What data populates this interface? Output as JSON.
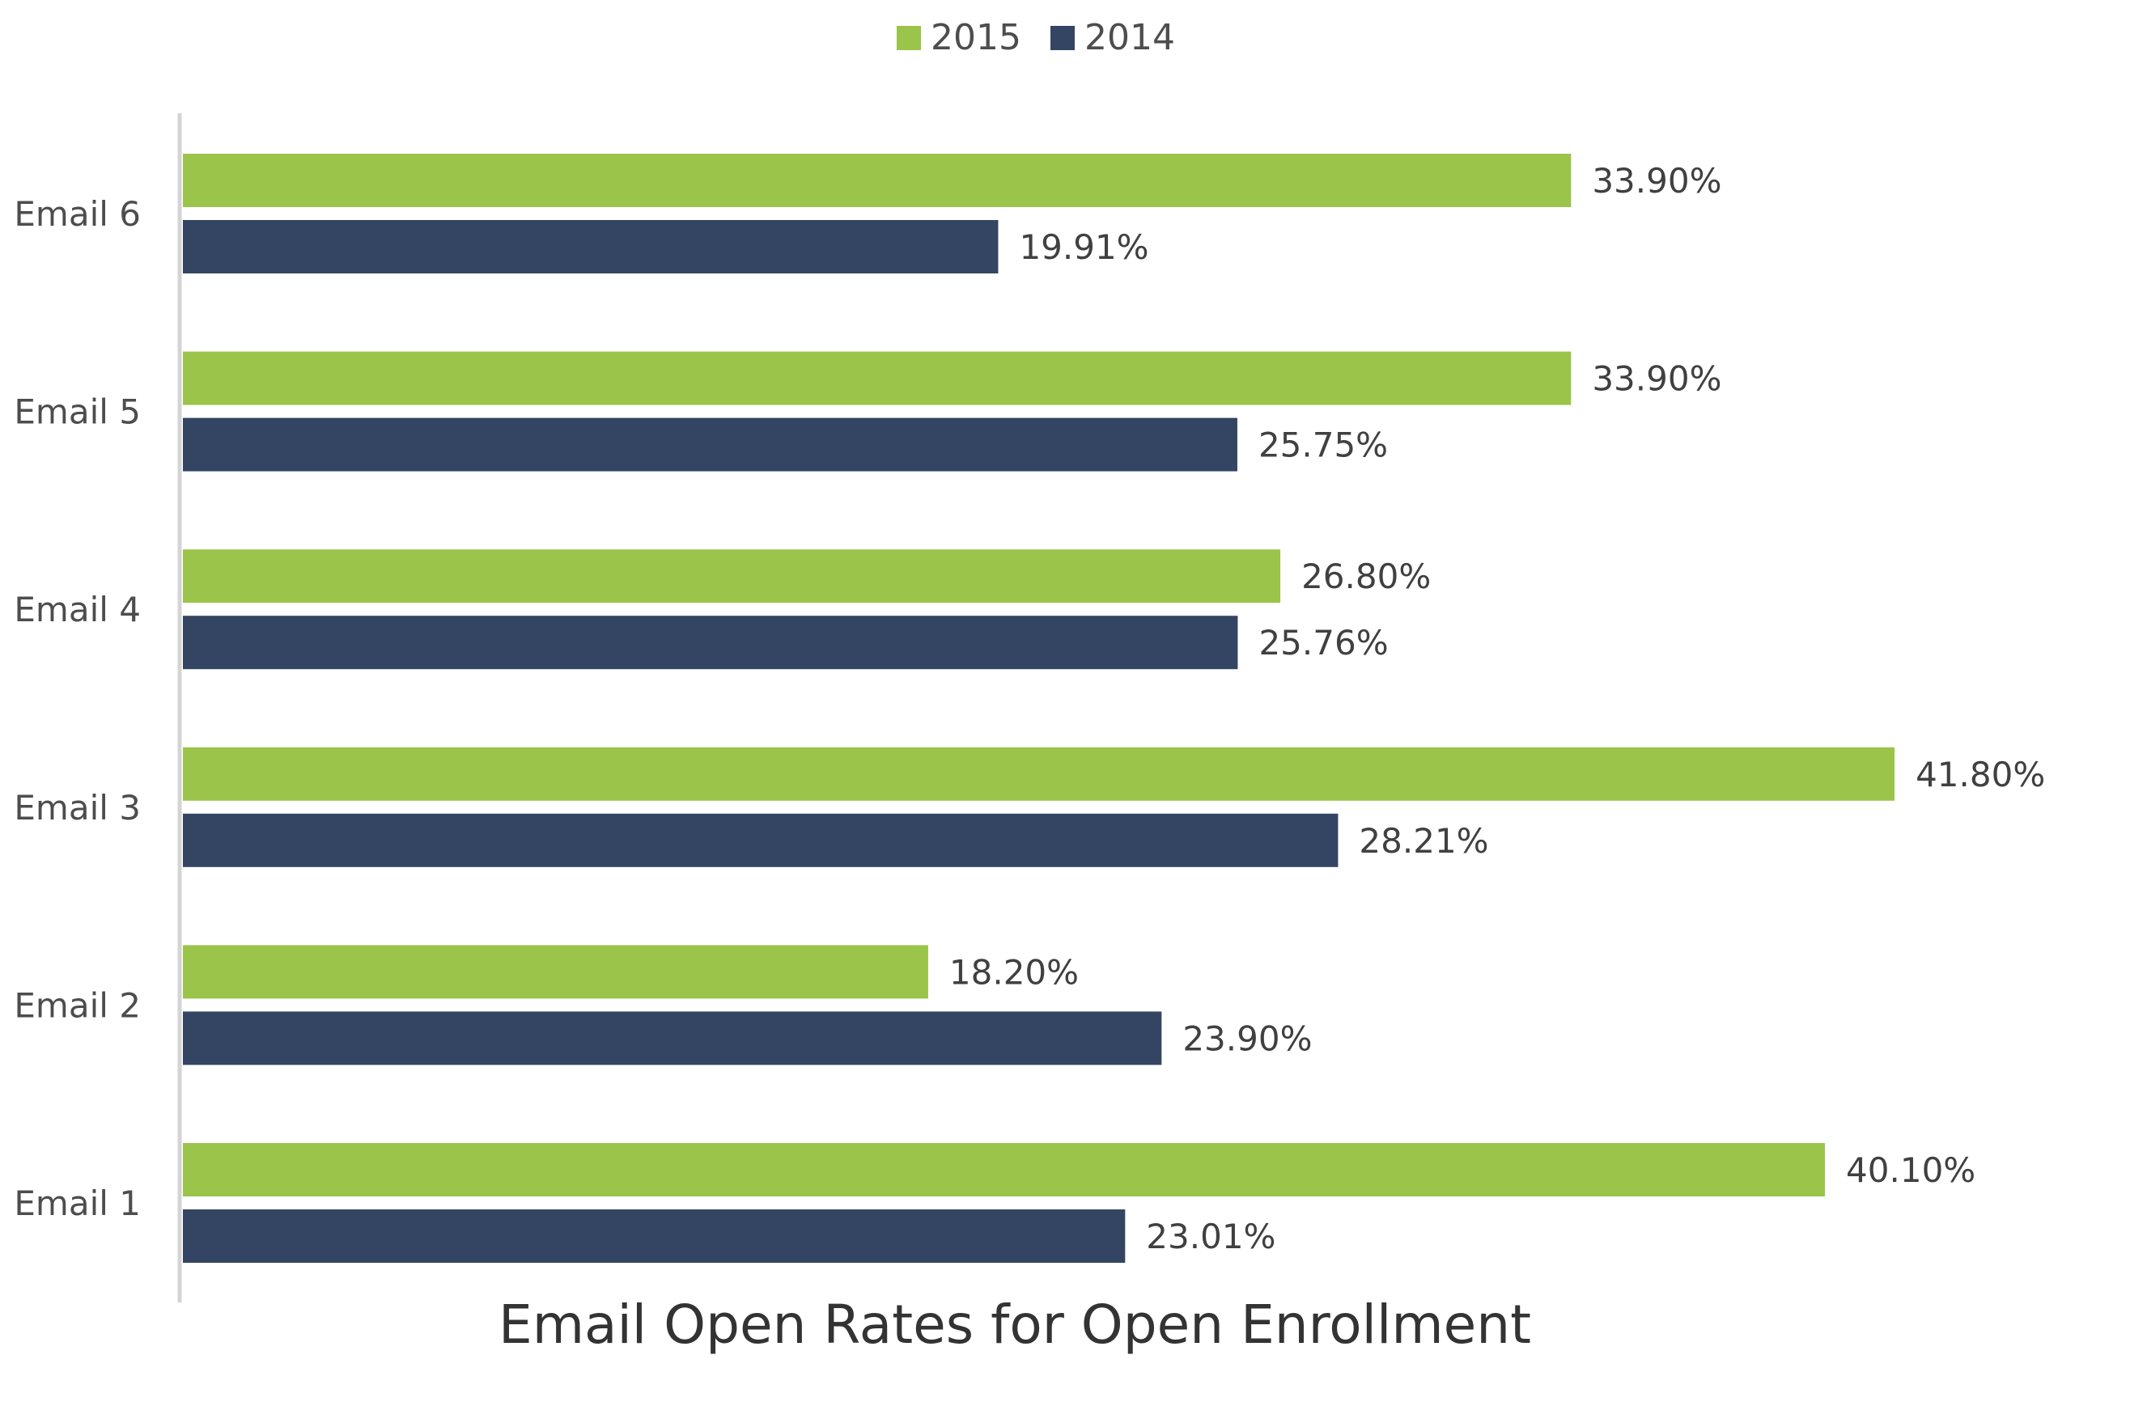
{
  "chart_data": {
    "type": "bar",
    "orientation": "horizontal",
    "title": "Email Open Rates for Open Enrollment",
    "categories": [
      "Email 6",
      "Email 5",
      "Email 4",
      "Email 3",
      "Email 2",
      "Email 1"
    ],
    "series": [
      {
        "name": "2015",
        "color": "#9bc44a",
        "values": [
          33.9,
          33.9,
          26.8,
          41.8,
          18.2,
          40.1
        ],
        "labels": [
          "33.90%",
          "33.90%",
          "26.80%",
          "41.80%",
          "18.20%",
          "40.10%"
        ]
      },
      {
        "name": "2014",
        "color": "#334562",
        "values": [
          19.91,
          25.75,
          25.76,
          28.21,
          23.9,
          23.01
        ],
        "labels": [
          "19.91%",
          "25.75%",
          "25.76%",
          "28.21%",
          "23.90%",
          "23.01%"
        ]
      }
    ],
    "xlim": [
      0,
      45
    ],
    "grid": false,
    "legend_position": "top-center",
    "title_position": "bottom"
  }
}
